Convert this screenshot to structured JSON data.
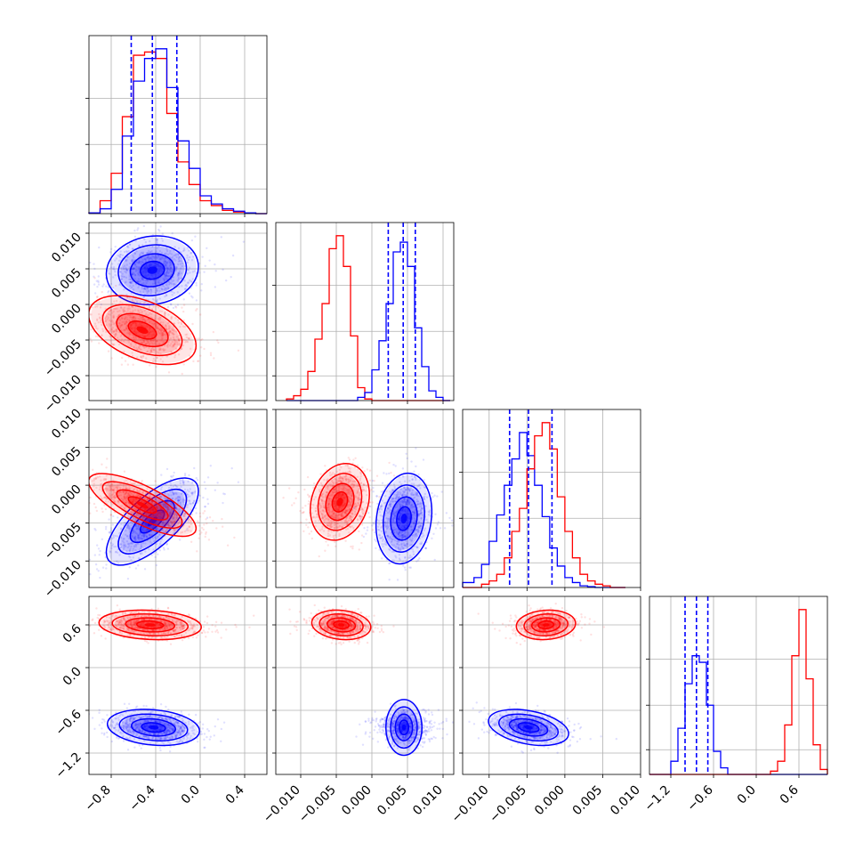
{
  "chart_data": [
    {
      "type": "histogram",
      "panel": "p0_0",
      "xlim": [
        -1.0,
        0.6
      ],
      "xticks": [
        -0.8,
        -0.4,
        0.0,
        0.4
      ],
      "xtick_labels": [
        "−0.8",
        "−0.4",
        "0.0",
        "0.4"
      ],
      "bins": [
        -1.0,
        -0.9,
        -0.8,
        -0.7,
        -0.6,
        -0.5,
        -0.4,
        -0.3,
        -0.2,
        -0.1,
        0.0,
        0.1,
        0.2,
        0.3,
        0.4,
        0.5,
        0.6
      ],
      "grid": true,
      "series": [
        {
          "color": "#ff0000",
          "values": [
            0.5,
            8,
            25,
            60,
            98,
            100,
            96,
            62,
            32,
            18,
            8,
            5,
            2,
            1,
            0.5,
            0
          ]
        },
        {
          "color": "#0000ff",
          "values": [
            0.5,
            3,
            15,
            48,
            82,
            96,
            102,
            78,
            45,
            28,
            11,
            6,
            3,
            1.5,
            0.5,
            0
          ]
        }
      ],
      "quantile_lines": [
        -0.62,
        -0.43,
        -0.21
      ]
    },
    {
      "type": "histogram",
      "panel": "p1_1",
      "xlim": [
        -0.0135,
        0.0115
      ],
      "bins": [
        -0.012,
        -0.011,
        -0.01,
        -0.009,
        -0.008,
        -0.007,
        -0.006,
        -0.005,
        -0.004,
        -0.003,
        -0.002,
        -0.001,
        0.0,
        0.001,
        0.002,
        0.003,
        0.004,
        0.005,
        0.006,
        0.007,
        0.008,
        0.009,
        0.01,
        0.011
      ],
      "grid": true,
      "series": [
        {
          "color": "#ff0000",
          "values": [
            1,
            3,
            7,
            18,
            38,
            60,
            94,
            102,
            83,
            40,
            8,
            1,
            0,
            0,
            0,
            0,
            0,
            0,
            0,
            0,
            0,
            0,
            0
          ]
        },
        {
          "color": "#0000ff",
          "values": [
            0,
            0,
            0,
            0,
            0,
            0,
            0,
            0,
            0,
            0,
            2,
            5,
            19,
            37,
            60,
            92,
            98,
            83,
            45,
            21,
            6,
            2,
            0
          ]
        }
      ],
      "quantile_lines": [
        0.0023,
        0.0044,
        0.0061
      ]
    },
    {
      "type": "histogram",
      "panel": "p2_2",
      "xlim": [
        -0.0135,
        0.01
      ],
      "xticks": [
        -0.01,
        -0.005,
        0.0,
        0.005,
        0.01
      ],
      "xtick_labels": [
        "−0.010",
        "−0.005",
        "0.000",
        "0.005",
        "0.010"
      ],
      "bins": [
        -0.0135,
        -0.012,
        -0.011,
        -0.01,
        -0.009,
        -0.008,
        -0.007,
        -0.006,
        -0.005,
        -0.004,
        -0.003,
        -0.002,
        -0.001,
        0.0,
        0.001,
        0.002,
        0.003,
        0.004,
        0.005,
        0.006,
        0.007,
        0.008
      ],
      "grid": true,
      "series": [
        {
          "color": "#0000ff",
          "values": [
            3,
            6,
            14,
            28,
            44,
            62,
            78,
            94,
            80,
            62,
            43,
            24,
            13,
            6,
            3,
            1,
            0.5,
            0,
            0,
            0,
            0
          ]
        },
        {
          "color": "#ff0000",
          "values": [
            0,
            0,
            2,
            4,
            8,
            18,
            34,
            48,
            72,
            92,
            100,
            84,
            55,
            34,
            18,
            8,
            4,
            2,
            1,
            0,
            0
          ]
        }
      ],
      "quantile_lines": [
        -0.0073,
        -0.0048,
        -0.0017
      ]
    },
    {
      "type": "histogram",
      "panel": "p3_3",
      "xlim": [
        -1.5,
        1.0
      ],
      "xticks": [
        -1.2,
        -0.6,
        0.0,
        0.6
      ],
      "xtick_labels": [
        "−1.2",
        "−0.6",
        "0.0",
        "0.6"
      ],
      "bins": [
        -1.5,
        -1.4,
        -1.3,
        -1.2,
        -1.1,
        -1.0,
        -0.9,
        -0.8,
        -0.7,
        -0.6,
        -0.5,
        -0.4,
        -0.3,
        -0.2,
        -0.1,
        0.0,
        0.1,
        0.2,
        0.3,
        0.4,
        0.5,
        0.6,
        0.7,
        0.8,
        0.9,
        1.0
      ],
      "grid": true,
      "series": [
        {
          "color": "#0000ff",
          "values": [
            0,
            0,
            0,
            8,
            28,
            55,
            72,
            68,
            42,
            14,
            4,
            0,
            0,
            0,
            0,
            0,
            0,
            0,
            0,
            0,
            0,
            0,
            0,
            0,
            0
          ]
        },
        {
          "color": "#ff0000",
          "values": [
            0,
            0,
            0,
            0,
            0,
            0,
            0,
            0,
            0,
            0,
            0,
            0,
            0,
            0,
            0,
            0,
            0,
            2,
            8,
            30,
            72,
            100,
            58,
            18,
            3
          ]
        }
      ],
      "quantile_lines": [
        -1.0,
        -0.84,
        -0.68
      ]
    },
    {
      "type": "scatter_density",
      "panel": "p1_0",
      "xlim": [
        -1.0,
        0.6
      ],
      "ylim": [
        -0.0135,
        0.0115
      ],
      "yticks": [
        -0.01,
        -0.005,
        0.0,
        0.005,
        0.01
      ],
      "ytick_labels": [
        "−0.010",
        "−0.005",
        "0.000",
        "0.005",
        "0.010"
      ],
      "series": [
        {
          "color": "#0000ff",
          "center": [
            -0.43,
            0.0048
          ],
          "sigma": [
            0.18,
            0.0021
          ],
          "rho": 0.1
        },
        {
          "color": "#ff0000",
          "center": [
            -0.52,
            -0.0036
          ],
          "sigma": [
            0.21,
            0.0021
          ],
          "rho": -0.45
        }
      ]
    },
    {
      "type": "scatter_density",
      "panel": "p2_0",
      "xlim": [
        -1.0,
        0.6
      ],
      "ylim": [
        -0.0135,
        0.01
      ],
      "yticks": [
        -0.01,
        -0.005,
        0.0,
        0.005,
        0.01
      ],
      "ytick_labels": [
        "−0.010",
        "−0.005",
        "0.000",
        "0.005",
        "0.010"
      ],
      "series": [
        {
          "color": "#0000ff",
          "center": [
            -0.43,
            -0.0048
          ],
          "sigma": [
            0.18,
            0.0025
          ],
          "rho": 0.7
        },
        {
          "color": "#ff0000",
          "center": [
            -0.52,
            -0.0026
          ],
          "sigma": [
            0.21,
            0.0018
          ],
          "rho": -0.75
        }
      ]
    },
    {
      "type": "scatter_density",
      "panel": "p2_1",
      "xlim": [
        -0.0135,
        0.0115
      ],
      "ylim": [
        -0.0135,
        0.01
      ],
      "series": [
        {
          "color": "#ff0000",
          "center": [
            -0.0045,
            -0.0022
          ],
          "sigma": [
            0.0018,
            0.0022
          ],
          "rho": 0.2
        },
        {
          "color": "#0000ff",
          "center": [
            0.0045,
            -0.0044
          ],
          "sigma": [
            0.0017,
            0.0026
          ],
          "rho": 0.15
        }
      ]
    },
    {
      "type": "scatter_density",
      "panel": "p3_0",
      "xlim": [
        -1.0,
        0.6
      ],
      "ylim": [
        -1.5,
        1.0
      ],
      "yticks": [
        -1.2,
        -0.6,
        0.0,
        0.6
      ],
      "ytick_labels": [
        "−1.2",
        "−0.6",
        "0.0",
        "0.6"
      ],
      "series": [
        {
          "color": "#ff0000",
          "center": [
            -0.45,
            0.6
          ],
          "sigma": [
            0.2,
            0.09
          ],
          "rho": -0.15
        },
        {
          "color": "#0000ff",
          "center": [
            -0.42,
            -0.84
          ],
          "sigma": [
            0.18,
            0.11
          ],
          "rho": -0.2
        }
      ]
    },
    {
      "type": "scatter_density",
      "panel": "p3_1",
      "xlim": [
        -0.0135,
        0.0115
      ],
      "ylim": [
        -1.5,
        1.0
      ],
      "series": [
        {
          "color": "#ff0000",
          "center": [
            -0.0043,
            0.6
          ],
          "sigma": [
            0.0018,
            0.09
          ],
          "rho": -0.15
        },
        {
          "color": "#0000ff",
          "center": [
            0.0045,
            -0.84
          ],
          "sigma": [
            0.0017,
            0.11
          ],
          "rho": 0.0
        }
      ]
    },
    {
      "type": "scatter_density",
      "panel": "p3_2",
      "xlim": [
        -0.0135,
        0.01
      ],
      "ylim": [
        -1.5,
        1.0
      ],
      "series": [
        {
          "color": "#ff0000",
          "center": [
            -0.0025,
            0.6
          ],
          "sigma": [
            0.0017,
            0.09
          ],
          "rho": 0.1
        },
        {
          "color": "#0000ff",
          "center": [
            -0.0048,
            -0.84
          ],
          "sigma": [
            0.0023,
            0.11
          ],
          "rho": -0.35
        }
      ]
    }
  ]
}
